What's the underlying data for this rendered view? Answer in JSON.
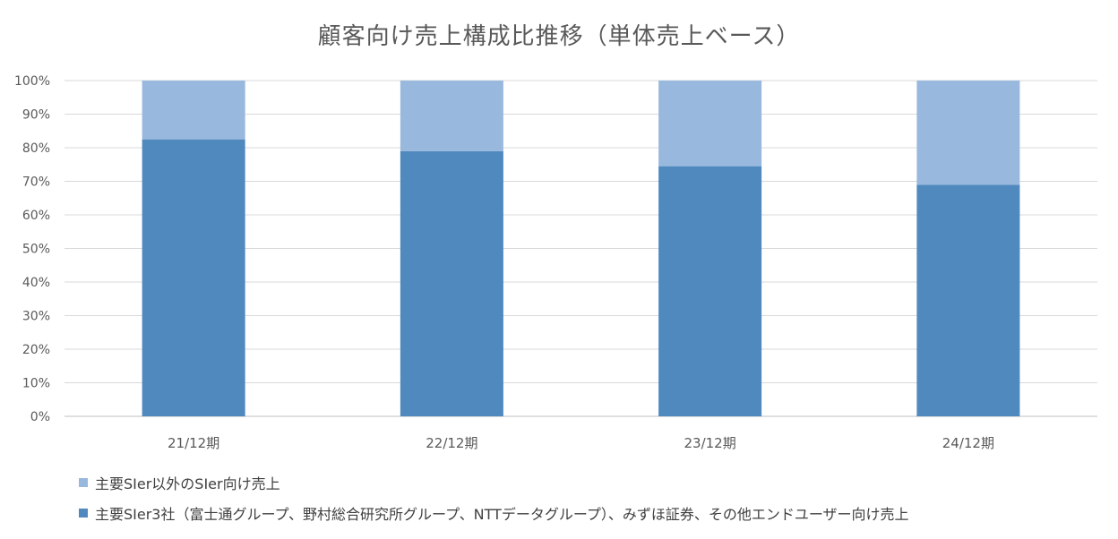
{
  "chart_data": {
    "type": "bar",
    "stacked": true,
    "title": "顧客向け売上構成比推移（単体売上ベース）",
    "categories": [
      "21/12期",
      "22/12期",
      "23/12期",
      "24/12期"
    ],
    "y_ticks": [
      "0%",
      "10%",
      "20%",
      "30%",
      "40%",
      "50%",
      "60%",
      "70%",
      "80%",
      "90%",
      "100%"
    ],
    "ylim": [
      0,
      100
    ],
    "grid": true,
    "legend_position": "bottom",
    "series": [
      {
        "name": "主要SIer3社（富士通グループ、野村総合研究所グループ、NTTデータグループ）、みずほ証券、その他エンドユーザー向け売上",
        "values": [
          82.5,
          79.0,
          74.5,
          69.0
        ],
        "color": "#4f89bd"
      },
      {
        "name": "主要SIer以外のSIer向け売上",
        "values": [
          17.5,
          21.0,
          25.5,
          31.0
        ],
        "color": "#99b8de"
      }
    ],
    "legend_order": [
      1,
      0
    ]
  }
}
